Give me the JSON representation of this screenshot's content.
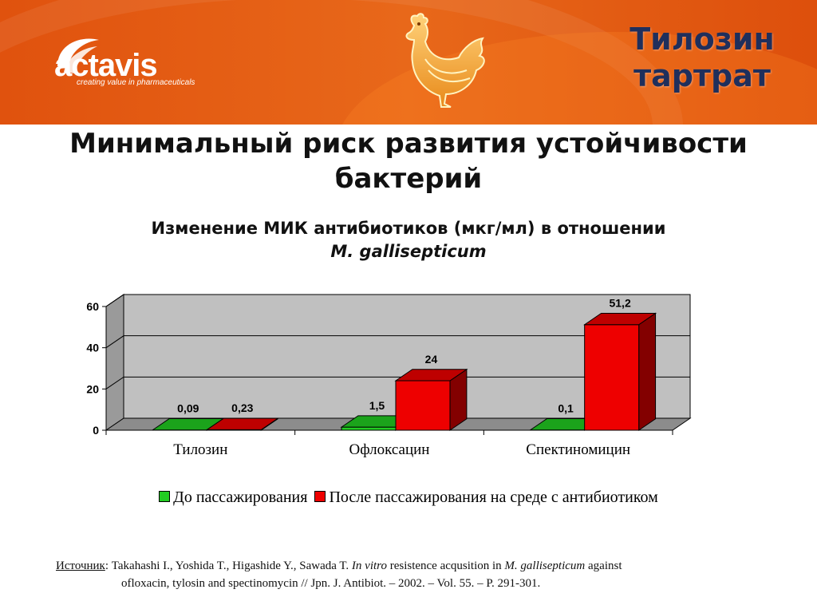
{
  "header": {
    "logo_text": "actavis",
    "logo_tagline": "creating value in pharmaceuticals",
    "product_line1": "Тилозин",
    "product_line2": "тартрат",
    "colors": {
      "band": "#e25a12",
      "product_text": "#1f2f5c",
      "chicken": "#f0a030"
    }
  },
  "title": {
    "line1": "Минимальный риск развития устойчивости",
    "line2": "бактерий"
  },
  "subtitle": {
    "line1": "Изменение МИК антибиотиков (мкг/мл) в отношении",
    "line2": "M. gallisepticum"
  },
  "chart_data": {
    "type": "bar",
    "style": "3d-clustered",
    "categories": [
      "Тилозин",
      "Офлоксацин",
      "Спектиномицин"
    ],
    "series": [
      {
        "name": "До пассажирования",
        "color": "#22cc22",
        "values": [
          0.09,
          1.5,
          0.1
        ],
        "labels": [
          "0,09",
          "1,5",
          "0,1"
        ]
      },
      {
        "name": "После пассажирования на среде с антибиотиком",
        "color": "#ee0000",
        "values": [
          0.23,
          24,
          51.2
        ],
        "labels": [
          "0,23",
          "24",
          "51,2"
        ]
      }
    ],
    "ylim": [
      0,
      60
    ],
    "yticks": [
      "0",
      "20",
      "40",
      "60"
    ],
    "grid": true,
    "legend_position": "bottom"
  },
  "source": {
    "label": "Источник",
    "text_a": ": Takahashi I., Yoshida T., Higashide Y., Sawada T. ",
    "italic_a": "In vitro",
    "text_b": " resistence acqusition in ",
    "italic_b": "M. gallisepticum",
    "text_c": " against",
    "line2": "ofloxacin, tylosin and spectinomycin // Jpn. J. Antibiot. – 2002. – Vol. 55. – P. 291-301."
  }
}
